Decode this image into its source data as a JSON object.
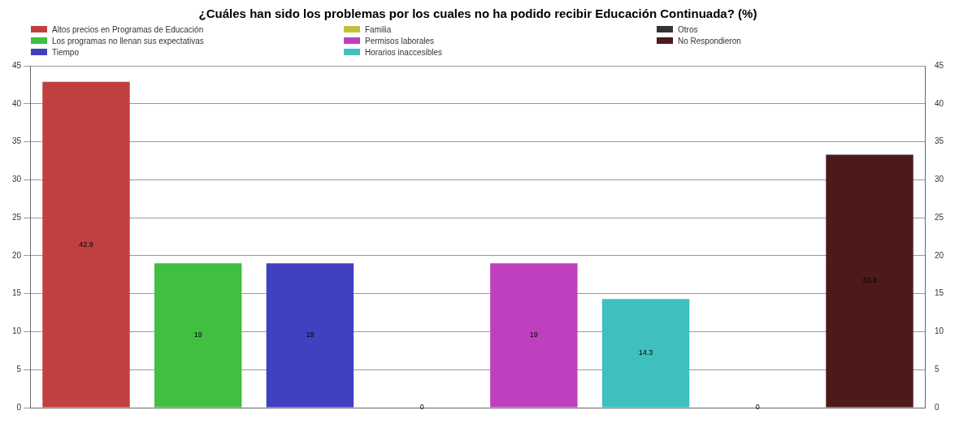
{
  "chart_data": {
    "type": "bar",
    "title": "¿Cuáles han sido los problemas por los cuales no ha podido recibir Educación Continuada? (%)",
    "categories": [
      null,
      null,
      null,
      null,
      null,
      null,
      null,
      null
    ],
    "series": [
      {
        "name": "Altos precios en Programas de Educación",
        "color": "#c0403f",
        "values": [
          42.9,
          null,
          null,
          null,
          null,
          null,
          null,
          null
        ]
      },
      {
        "name": "Los programas no llenan sus expectativas",
        "color": "#40bf40",
        "values": [
          null,
          19,
          null,
          null,
          null,
          null,
          null,
          null
        ]
      },
      {
        "name": "Tiempo",
        "color": "#4040c0",
        "values": [
          null,
          null,
          19,
          null,
          null,
          null,
          null,
          null
        ]
      },
      {
        "name": "Familia",
        "color": "#c0c040",
        "values": [
          null,
          null,
          null,
          0,
          null,
          null,
          null,
          null
        ]
      },
      {
        "name": "Permisos laborales",
        "color": "#bf40bf",
        "values": [
          null,
          null,
          null,
          null,
          19,
          null,
          null,
          null
        ]
      },
      {
        "name": "Horarios inaccesibles",
        "color": "#40bfbf",
        "values": [
          null,
          null,
          null,
          null,
          null,
          14.3,
          null,
          null
        ]
      },
      {
        "name": "Otros",
        "color": "#333333",
        "values": [
          null,
          null,
          null,
          null,
          null,
          null,
          0,
          null
        ]
      },
      {
        "name": "No Respondieron",
        "color": "#4d1a1a",
        "values": [
          null,
          null,
          null,
          null,
          null,
          null,
          null,
          33.3
        ]
      }
    ],
    "ylim": [
      0,
      45
    ],
    "yticks": [
      0,
      5,
      10,
      15,
      20,
      25,
      30,
      35,
      40,
      45
    ],
    "y2lim": [
      0,
      45
    ],
    "y2ticks": [
      0,
      5,
      10,
      15,
      20,
      25,
      30,
      35,
      40,
      45
    ],
    "grid": "y",
    "legend": "top",
    "data_labels": true
  }
}
